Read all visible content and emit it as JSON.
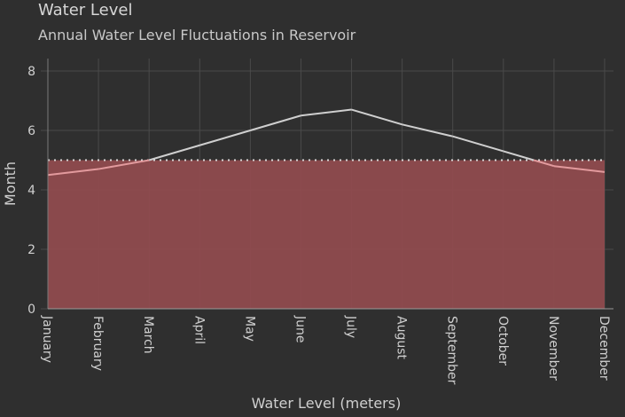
{
  "chart_data": {
    "type": "area",
    "title": "Water Level",
    "subtitle": "Annual Water Level Fluctuations in Reservoir",
    "xlabel": "Water Level (meters)",
    "ylabel": "Month",
    "categories": [
      "January",
      "February",
      "March",
      "April",
      "May",
      "June",
      "July",
      "August",
      "September",
      "October",
      "November",
      "December"
    ],
    "series": [
      {
        "values": [
          4.5,
          4.7,
          5.0,
          5.5,
          6.0,
          6.5,
          6.7,
          6.2,
          5.8,
          5.3,
          4.8,
          4.6
        ]
      }
    ],
    "threshold": 5.0,
    "ylim": [
      0,
      8
    ],
    "yticks": [
      0,
      2,
      4,
      6,
      8
    ],
    "grid": true,
    "colors": {
      "background": "#2f2f2f",
      "grid": "#4a4a4a",
      "fill": "#8f4b4e",
      "line_above": "#cfcfcf",
      "line_below": "#e29a9d",
      "threshold": "#d8d8d8"
    }
  }
}
